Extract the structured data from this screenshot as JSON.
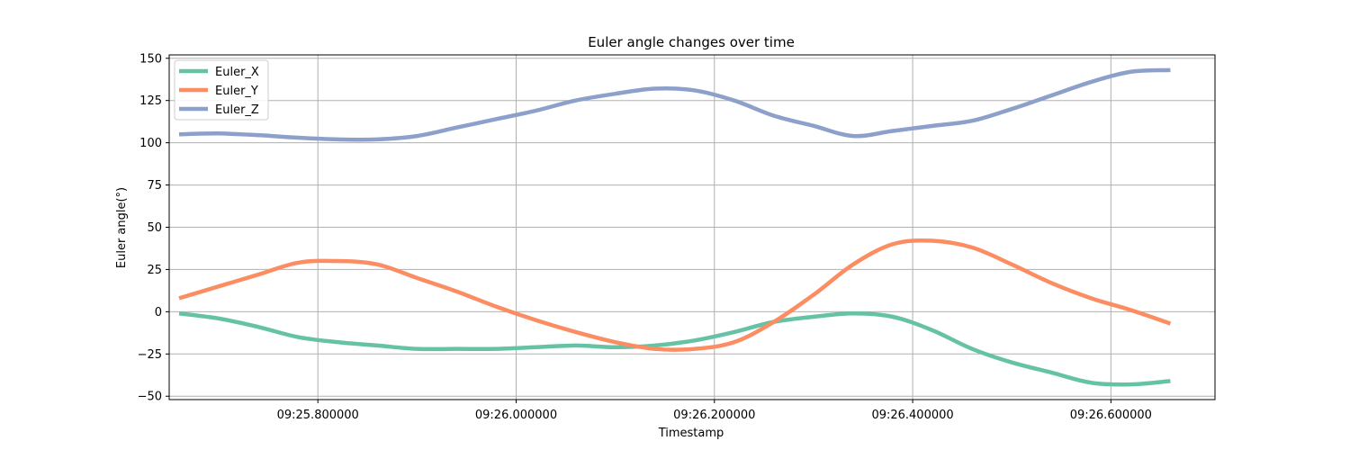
{
  "chart_data": {
    "type": "line",
    "title": "Euler angle changes over time",
    "xlabel": "Timestamp",
    "ylabel": "Euler angle(°)",
    "x_ticks": [
      {
        "value": "09:25.800000",
        "label": "09:25.800000"
      },
      {
        "value": "09:26.000000",
        "label": "09:26.000000"
      },
      {
        "value": "09:26.200000",
        "label": "09:26.200000"
      },
      {
        "value": "09:26.400000",
        "label": "09:26.400000"
      },
      {
        "value": "09:26.600000",
        "label": "09:26.600000"
      }
    ],
    "y_ticks": [
      150,
      125,
      100,
      75,
      50,
      25,
      0,
      -25,
      -50
    ],
    "xlim": [
      "09:25.650000",
      "09:26.705000"
    ],
    "ylim": [
      -52,
      152
    ],
    "grid": true,
    "legend_position": "top-left",
    "x": [
      "09:25.660000",
      "09:25.700000",
      "09:25.740000",
      "09:25.780000",
      "09:25.820000",
      "09:25.860000",
      "09:25.900000",
      "09:25.940000",
      "09:25.980000",
      "09:26.020000",
      "09:26.060000",
      "09:26.100000",
      "09:26.140000",
      "09:26.180000",
      "09:26.220000",
      "09:26.260000",
      "09:26.300000",
      "09:26.340000",
      "09:26.380000",
      "09:26.420000",
      "09:26.460000",
      "09:26.500000",
      "09:26.540000",
      "09:26.580000",
      "09:26.620000",
      "09:26.660000"
    ],
    "series": [
      {
        "name": "Euler_X",
        "color": "#66c2a5",
        "values": [
          -1,
          -4,
          -9,
          -15,
          -18,
          -20,
          -22,
          -22,
          -22,
          -21,
          -20,
          -21,
          -20,
          -17,
          -12,
          -6,
          -3,
          -1,
          -3,
          -11,
          -22,
          -30,
          -36,
          -42,
          -43,
          -41
        ]
      },
      {
        "name": "Euler_Y",
        "color": "#fc8d62",
        "values": [
          8,
          15,
          22,
          29,
          30,
          28,
          20,
          12,
          3,
          -5,
          -12,
          -18,
          -22,
          -22,
          -18,
          -6,
          10,
          28,
          40,
          42,
          38,
          28,
          17,
          8,
          1,
          -7
        ]
      },
      {
        "name": "Euler_Z",
        "color": "#8da0cb",
        "values": [
          105,
          105.5,
          104.5,
          103,
          102,
          102,
          104,
          109,
          114,
          119,
          125,
          129,
          132,
          131,
          125,
          116,
          110,
          104,
          107,
          110,
          113,
          120,
          128,
          136,
          142,
          143
        ]
      }
    ]
  }
}
